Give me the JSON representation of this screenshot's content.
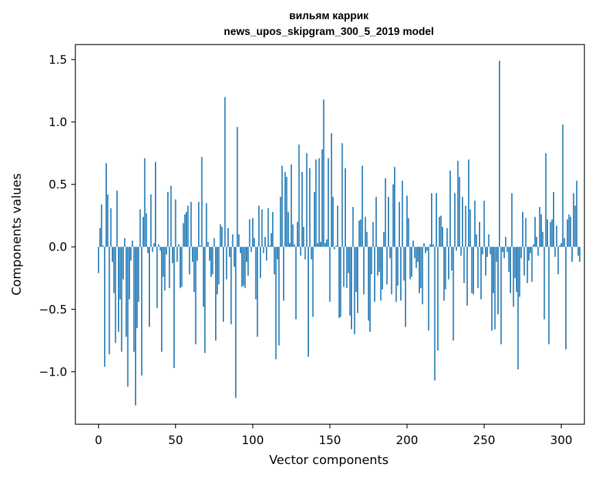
{
  "chart_data": {
    "type": "bar",
    "title": "вильям каррик",
    "subtitle": "news_upos_skipgram_300_5_2019 model",
    "xlabel": "Vector components",
    "ylabel": "Components values",
    "xlim": [
      -15,
      315
    ],
    "ylim": [
      -1.42,
      1.62
    ],
    "x_ticks": [
      0,
      50,
      100,
      150,
      200,
      250,
      300
    ],
    "x_tick_labels": [
      "0",
      "50",
      "100",
      "150",
      "200",
      "250",
      "300"
    ],
    "y_ticks": [
      -1.0,
      -0.5,
      0.0,
      0.5,
      1.0,
      1.5
    ],
    "y_tick_labels": [
      "−1.0",
      "−0.5",
      "0.0",
      "0.5",
      "1.0",
      "1.5"
    ],
    "grid": false,
    "bar_color": "#1f77b4",
    "series": [
      {
        "values": [
          -0.21,
          0.15,
          0.34,
          0.01,
          -0.96,
          0.67,
          0.42,
          -0.86,
          0.31,
          -0.12,
          -0.37,
          -0.77,
          0.45,
          -0.68,
          -0.42,
          -0.84,
          -0.26,
          0.07,
          -0.72,
          -1.12,
          -0.42,
          -0.11,
          0.05,
          -0.84,
          -1.27,
          -0.65,
          -0.44,
          0.3,
          -1.03,
          0.24,
          0.71,
          0.27,
          -0.05,
          -0.64,
          0.42,
          -0.04,
          0.03,
          0.68,
          -0.49,
          0.02,
          -0.03,
          -0.84,
          -0.24,
          -0.35,
          -0.06,
          0.44,
          -0.33,
          0.49,
          -0.13,
          -0.97,
          0.38,
          -0.12,
          0.02,
          -0.33,
          -0.32,
          0.19,
          0.26,
          0.28,
          0.33,
          -0.22,
          0.36,
          -0.12,
          -0.36,
          -0.78,
          -0.11,
          0.36,
          0.01,
          0.72,
          -0.48,
          -0.85,
          0.35,
          0.04,
          -0.11,
          -0.24,
          -0.22,
          0.07,
          -0.75,
          -0.38,
          -0.3,
          0.18,
          0.16,
          -0.6,
          1.2,
          -0.26,
          0.15,
          -0.08,
          -0.62,
          0.1,
          -0.16,
          -1.21,
          0.96,
          0.1,
          -0.05,
          -0.32,
          -0.31,
          -0.33,
          -0.12,
          -0.23,
          0.22,
          -0.04,
          0.23,
          0.07,
          -0.42,
          -0.72,
          0.33,
          -0.25,
          0.3,
          -0.05,
          0.08,
          -0.11,
          0.31,
          0.01,
          0.11,
          0.28,
          -0.22,
          -0.9,
          -0.1,
          -0.79,
          0.4,
          0.65,
          -0.43,
          0.6,
          0.56,
          0.28,
          0.03,
          0.66,
          0.18,
          0.02,
          -0.58,
          0.2,
          0.82,
          -0.07,
          0.6,
          0.16,
          -0.1,
          0.75,
          -0.88,
          0.63,
          -0.1,
          -0.56,
          0.44,
          0.7,
          0.03,
          0.71,
          0.04,
          0.78,
          1.18,
          0.03,
          0.06,
          0.71,
          -0.44,
          0.91,
          0.4,
          -0.02,
          0.01,
          0.33,
          -0.57,
          -0.56,
          0.83,
          -0.32,
          0.63,
          -0.33,
          -0.21,
          -0.55,
          -0.66,
          0.32,
          -0.7,
          -0.36,
          -0.53,
          0.21,
          0.22,
          0.65,
          -0.38,
          0.24,
          0.12,
          -0.59,
          -0.68,
          -0.22,
          0.2,
          -0.44,
          0.4,
          -0.23,
          -0.2,
          -0.43,
          -0.34,
          0.12,
          0.55,
          -0.3,
          0.4,
          -0.09,
          -0.38,
          0.5,
          0.64,
          -0.44,
          -0.31,
          0.36,
          -0.43,
          0.53,
          -0.27,
          -0.64,
          0.41,
          0.23,
          -0.26,
          -0.24,
          0.05,
          -0.09,
          -0.17,
          -0.12,
          -0.37,
          -0.33,
          -0.46,
          0.03,
          -0.05,
          -0.03,
          -0.67,
          0.02,
          0.43,
          0.02,
          -1.07,
          0.43,
          -0.83,
          0.24,
          0.25,
          0.16,
          -0.43,
          -0.34,
          0.15,
          -0.26,
          0.61,
          -0.19,
          -0.75,
          0.43,
          -0.03,
          0.69,
          0.56,
          -0.07,
          0.4,
          -0.29,
          0.33,
          -0.47,
          0.7,
          0.3,
          -0.37,
          -0.38,
          0.37,
          0.1,
          -0.33,
          0.2,
          -0.42,
          -0.06,
          0.37,
          -0.23,
          -0.08,
          0.1,
          -0.06,
          -0.67,
          -0.37,
          -0.66,
          -0.12,
          -0.54,
          1.49,
          -0.78,
          -0.04,
          -0.09,
          0.08,
          -0.04,
          -0.2,
          -0.37,
          0.43,
          -0.48,
          -0.25,
          -0.36,
          -0.98,
          -0.4,
          -0.09,
          0.28,
          -0.23,
          0.23,
          -0.29,
          -0.11,
          -0.05,
          -0.28,
          0.02,
          0.24,
          0.08,
          -0.07,
          0.32,
          0.26,
          0.12,
          -0.58,
          0.75,
          0.22,
          -0.78,
          0.2,
          0.22,
          0.44,
          -0.08,
          0.17,
          -0.22,
          0.01,
          0.03,
          0.98,
          0.07,
          -0.82,
          0.22,
          0.26,
          0.24,
          -0.12,
          0.43,
          0.33,
          0.53,
          -0.07,
          -0.12
        ]
      }
    ]
  }
}
